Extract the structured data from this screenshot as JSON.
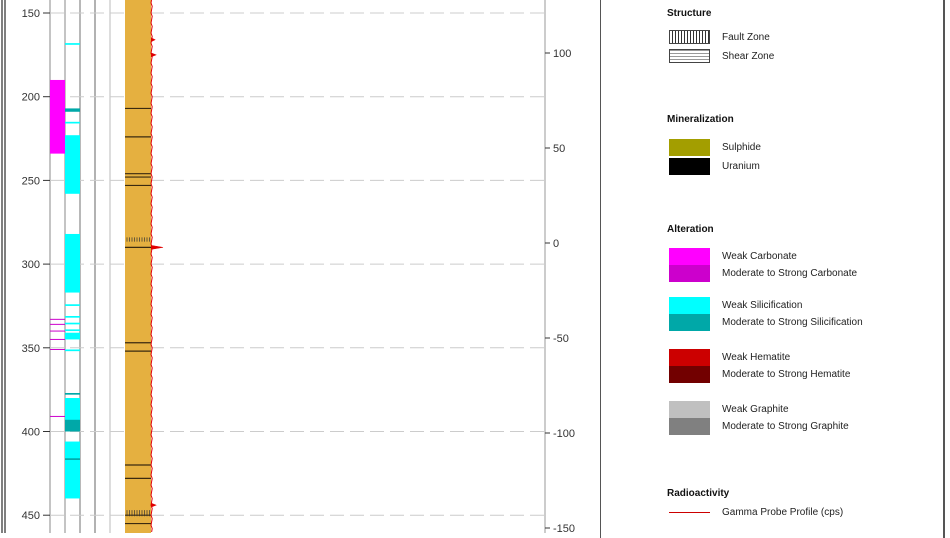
{
  "log": {
    "depth_ticks": [
      150,
      200,
      250,
      300,
      350,
      400,
      450
    ],
    "elevation_ticks": [
      100,
      50,
      0,
      -50,
      -100,
      -150
    ],
    "carbonate_intervals": [
      [
        190,
        234
      ]
    ],
    "carbonate_lines": [
      333,
      336,
      340,
      345,
      351,
      391
    ],
    "silicification_weak": [
      [
        168,
        169
      ],
      [
        215,
        216
      ],
      [
        223,
        258
      ],
      [
        282,
        317
      ],
      [
        324,
        325
      ],
      [
        331,
        332
      ],
      [
        335,
        336
      ],
      [
        339,
        340
      ],
      [
        341,
        345
      ],
      [
        351,
        352
      ],
      [
        380,
        395
      ],
      [
        406,
        440
      ]
    ],
    "silicification_strong": [
      [
        207,
        209
      ],
      [
        377,
        378
      ],
      [
        393,
        400
      ],
      [
        416,
        417
      ]
    ],
    "uranium_lines": [
      207,
      224,
      246,
      248,
      253,
      290,
      347,
      352,
      420,
      428,
      450,
      455
    ],
    "fault_zones": [
      [
        284,
        286
      ],
      [
        447,
        450
      ]
    ],
    "gamma_spikes": [
      [
        140,
        6
      ],
      [
        166,
        4
      ],
      [
        175,
        5
      ],
      [
        290,
        12
      ],
      [
        444,
        5
      ]
    ],
    "colors": {
      "lithology": "#e5b040",
      "gamma": "#e00000",
      "uranium": "#3a2a10",
      "grid": "#cccccc"
    }
  },
  "legend": {
    "structure": {
      "title": "Structure",
      "items": [
        {
          "label": "Fault Zone",
          "pattern": "vertical-hatch"
        },
        {
          "label": "Shear Zone",
          "pattern": "dotted-wave"
        }
      ]
    },
    "mineralization": {
      "title": "Mineralization",
      "items": [
        {
          "label": "Sulphide",
          "color": "#a39e00"
        },
        {
          "label": "Uranium",
          "color": "#000000"
        }
      ]
    },
    "alteration": {
      "title": "Alteration",
      "groups": [
        [
          {
            "label": "Weak Carbonate",
            "color": "#ff00ff"
          },
          {
            "label": "Moderate to Strong Carbonate",
            "color": "#cc00cc"
          }
        ],
        [
          {
            "label": "Weak Silicification",
            "color": "#00ffff"
          },
          {
            "label": "Moderate to Strong Silicification",
            "color": "#00a8a8"
          }
        ],
        [
          {
            "label": "Weak Hematite",
            "color": "#cc0000"
          },
          {
            "label": "Moderate to Strong Hematite",
            "color": "#720000"
          }
        ],
        [
          {
            "label": "Weak Graphite",
            "color": "#c0c0c0"
          },
          {
            "label": "Moderate to Strong Graphite",
            "color": "#808080"
          }
        ]
      ]
    },
    "radioactivity": {
      "title": "Radioactivity",
      "items": [
        {
          "label": "Gamma Probe Profile (cps)",
          "color": "#cc0000"
        }
      ]
    }
  }
}
